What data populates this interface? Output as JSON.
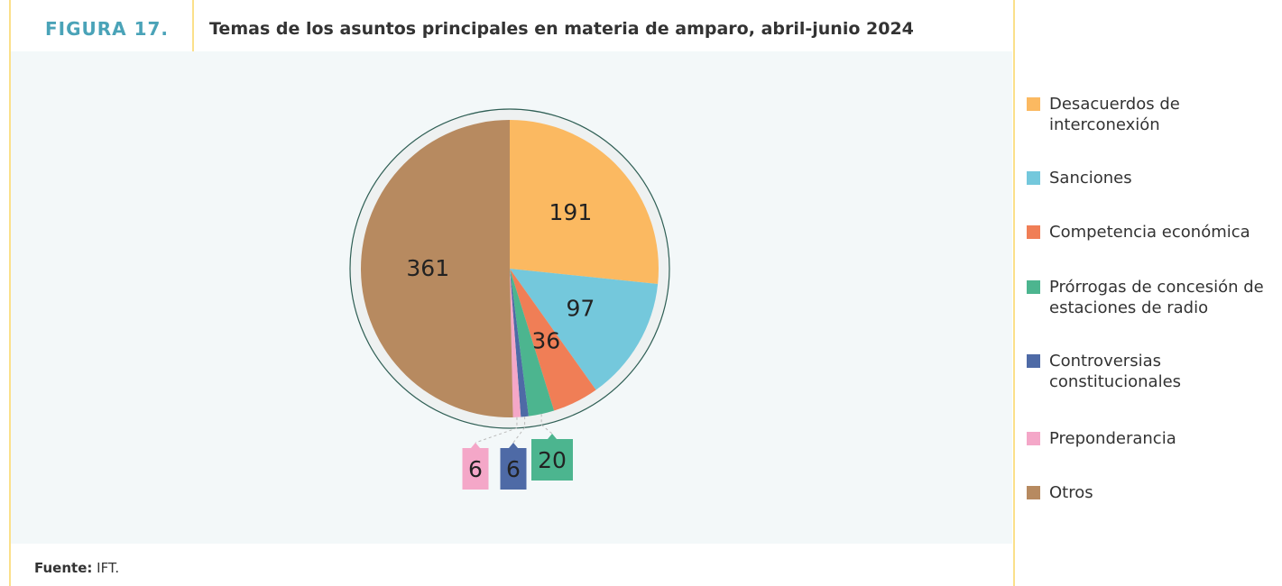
{
  "figure_label": "FIGURA 17.",
  "chart_data": {
    "type": "pie",
    "title": "Temas de los asuntos principales en materia de amparo, abril-junio 2024",
    "categories": [
      "Desacuerdos de interconexión",
      "Sanciones",
      "Competencia económica",
      "Prórrogas de concesión de estaciones de radio",
      "Controversias constitucionales",
      "Preponderancia",
      "Otros"
    ],
    "values": [
      191,
      97,
      36,
      20,
      6,
      6,
      361
    ],
    "colors": [
      "#fbb961",
      "#74c8dc",
      "#f07e56",
      "#4cb58f",
      "#4e6aa6",
      "#f4a7c8",
      "#b78a60"
    ]
  },
  "source": {
    "label": "Fuente:",
    "text": "IFT."
  }
}
